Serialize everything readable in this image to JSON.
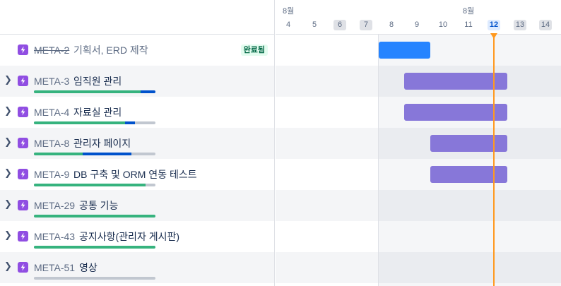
{
  "timeline": {
    "months": [
      {
        "label": "8월"
      },
      {
        "label": "8월"
      }
    ],
    "days": [
      "4",
      "5",
      "6",
      "7",
      "8",
      "9",
      "10",
      "11",
      "12",
      "13",
      "14"
    ],
    "today": "12"
  },
  "issues": [
    {
      "key": "META-2",
      "title": "기획서, ERD 제작",
      "status": "완료됨",
      "done": true,
      "expandable": false
    },
    {
      "key": "META-3",
      "title": "임직원 관리",
      "expandable": true,
      "progress": {
        "done": 0.88,
        "in_progress": 0.12
      }
    },
    {
      "key": "META-4",
      "title": "자료실 관리",
      "expandable": true,
      "progress": {
        "done": 0.75,
        "in_progress": 0.08
      }
    },
    {
      "key": "META-8",
      "title": "관리자 페이지",
      "expandable": true,
      "progress": {
        "done": 0.4,
        "in_progress": 0.4
      }
    },
    {
      "key": "META-9",
      "title": "DB 구축 및 ORM 연동 테스트",
      "expandable": true,
      "progress": {
        "done": 0.92,
        "in_progress": 0.0
      }
    },
    {
      "key": "META-29",
      "title": "공통 기능",
      "expandable": true,
      "progress": {
        "done": 1.0,
        "in_progress": 0.0
      }
    },
    {
      "key": "META-43",
      "title": "공지사항(관리자 게시판)",
      "expandable": true,
      "progress": {
        "done": 1.0,
        "in_progress": 0.0
      }
    },
    {
      "key": "META-51",
      "title": "영상",
      "expandable": true,
      "progress": {
        "done": 0.0,
        "in_progress": 0.0
      }
    }
  ],
  "colors": {
    "epic_icon": "#904ee2",
    "bar_done": "#2684ff",
    "bar_epic": "#8777d9",
    "today_line": "#ff991f",
    "progress_done": "#36b37e",
    "progress_in_progress": "#0052cc",
    "progress_todo": "#c1c7d0"
  },
  "icons": {
    "expand": "chevron-right-icon",
    "issue_type": "epic-lightning-icon"
  }
}
